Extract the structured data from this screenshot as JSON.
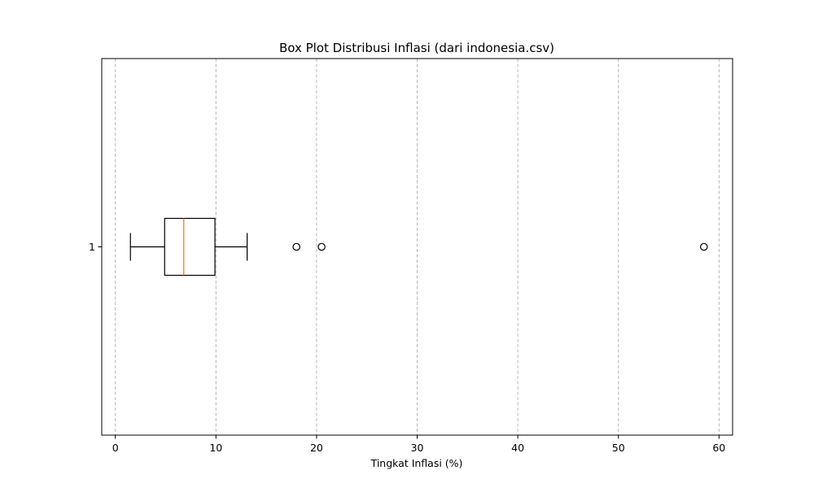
{
  "chart_data": {
    "type": "box",
    "orientation": "horizontal",
    "title": "Box Plot Distribusi Inflasi (dari indonesia.csv)",
    "xlabel": "Tingkat Inflasi (%)",
    "ylabel": "",
    "xlim": [
      -1.35,
      61.35
    ],
    "x_ticks": [
      0,
      10,
      20,
      30,
      40,
      50,
      60
    ],
    "grid": {
      "x": true,
      "y": false,
      "style": "dashed"
    },
    "series": [
      {
        "category": "1",
        "whisker_low": 1.5,
        "q1": 4.9,
        "median": 6.8,
        "q3": 9.9,
        "whisker_high": 13.1,
        "outliers": [
          18.0,
          20.5,
          58.5
        ]
      }
    ],
    "colors": {
      "box": "#000000",
      "median": "#ff7f0e",
      "grid": "#b0b0b0"
    }
  }
}
